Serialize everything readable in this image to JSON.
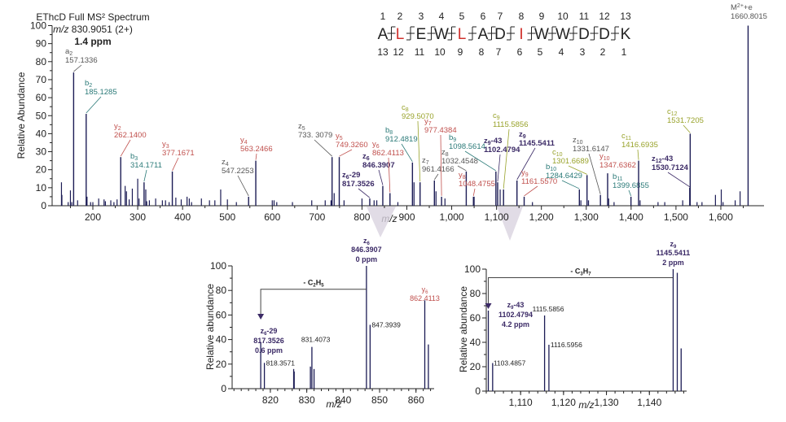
{
  "header": {
    "line1": "EThcD Full MS² Spectrum",
    "line2_italic": "m/z",
    "line2": " 830.9051 (2+)",
    "line3": "1.4 ppm"
  },
  "sequence": {
    "residues": [
      "A",
      "L",
      "E",
      "W",
      "L",
      "A",
      "D",
      "I",
      "W",
      "W",
      "D",
      "D",
      "K"
    ],
    "highlighted_indices": [
      1,
      4,
      7
    ],
    "highlight_color": "#d0312d",
    "top_numbers": [
      "1",
      "2",
      "3",
      "4",
      "5",
      "6",
      "7",
      "8",
      "9",
      "10",
      "11",
      "12",
      "13"
    ],
    "bottom_numbers": [
      "13",
      "12",
      "11",
      "10",
      "9",
      "8",
      "7",
      "6",
      "5",
      "4",
      "3",
      "2",
      "1"
    ]
  },
  "colors": {
    "peak": "#1c1c55",
    "gray": "#555555",
    "teal": "#2b7a78",
    "red": "#c0504d",
    "olive": "#98a22a",
    "purple": "#3b2a66"
  },
  "chart_data": [
    {
      "type": "bar",
      "title": "EThcD Full MS² Spectrum",
      "xlabel": "m/z",
      "ylabel": "Relative Abundance",
      "xlim": [
        110,
        1695
      ],
      "ylim": [
        0,
        100
      ],
      "yticks": [
        "0",
        "10",
        "20",
        "30",
        "40",
        "50",
        "60",
        "70",
        "80",
        "90",
        "100"
      ],
      "xticks": [
        "200",
        "300",
        "400",
        "500",
        "600",
        "700",
        "800",
        "900",
        "1,000",
        "1,100",
        "1,200",
        "1,300",
        "1,400",
        "1,500",
        "1,600"
      ],
      "labeled_peaks": [
        {
          "ion": "a",
          "sub": "2",
          "suffix": "",
          "mz": "157.1336",
          "y": 74,
          "color": "gray",
          "bold": false
        },
        {
          "ion": "b",
          "sub": "2",
          "suffix": "",
          "mz": "185.1285",
          "y": 51,
          "color": "teal",
          "bold": false
        },
        {
          "ion": "y",
          "sub": "2",
          "suffix": "",
          "mz": "262.1400",
          "y": 27,
          "color": "red",
          "bold": false
        },
        {
          "ion": "b",
          "sub": "3",
          "suffix": "",
          "mz": "314.1711",
          "y": 13,
          "color": "teal",
          "bold": false
        },
        {
          "ion": "y",
          "sub": "3",
          "suffix": "",
          "mz": "377.1671",
          "y": 19,
          "color": "red",
          "bold": false
        },
        {
          "ion": "z",
          "sub": "4",
          "suffix": "",
          "mz": "547.2253",
          "y": 5,
          "color": "gray",
          "bold": false
        },
        {
          "ion": "y",
          "sub": "4",
          "suffix": "",
          "mz": "563.2466",
          "y": 25,
          "color": "red",
          "bold": false
        },
        {
          "ion": "z",
          "sub": "5",
          "suffix": "",
          "mz": "733. 3079",
          "y": 27,
          "color": "gray",
          "bold": false
        },
        {
          "ion": "y",
          "sub": "5",
          "suffix": "",
          "mz": "749.3260",
          "y": 27,
          "color": "red",
          "bold": false
        },
        {
          "ion": "z",
          "sub": "6",
          "suffix": "-29",
          "mz": "817.3526",
          "y": 4,
          "color": "purple",
          "bold": true
        },
        {
          "ion": "z",
          "sub": "6",
          "suffix": "",
          "mz": "846.3907",
          "y": 11,
          "color": "purple",
          "bold": true
        },
        {
          "ion": "y",
          "sub": "6",
          "suffix": "",
          "mz": "862.4113",
          "y": 7,
          "color": "red",
          "bold": false
        },
        {
          "ion": "b",
          "sub": "8",
          "suffix": "",
          "mz": "912.4819",
          "y": 24,
          "color": "teal",
          "bold": false
        },
        {
          "ion": "c",
          "sub": "8",
          "suffix": "",
          "mz": "929.5070",
          "y": 13,
          "color": "olive",
          "bold": false
        },
        {
          "ion": "z",
          "sub": "7",
          "suffix": "",
          "mz": "961.4166",
          "y": 14,
          "color": "gray",
          "bold": false
        },
        {
          "ion": "y",
          "sub": "7",
          "suffix": "",
          "mz": "977.4384",
          "y": 5,
          "color": "red",
          "bold": false
        },
        {
          "ion": "z",
          "sub": "8",
          "suffix": "",
          "mz": "1032.4548",
          "y": 19,
          "color": "gray",
          "bold": false
        },
        {
          "ion": "y",
          "sub": "8",
          "suffix": "",
          "mz": "1048.4755",
          "y": 5,
          "color": "red",
          "bold": false
        },
        {
          "ion": "b",
          "sub": "9",
          "suffix": "",
          "mz": "1098.5614",
          "y": 19,
          "color": "teal",
          "bold": false
        },
        {
          "ion": "z",
          "sub": "9",
          "suffix": "-43",
          "mz": "1102.4794",
          "y": 13,
          "color": "purple",
          "bold": true
        },
        {
          "ion": "c",
          "sub": "9",
          "suffix": "",
          "mz": "1115.5856",
          "y": 9,
          "color": "olive",
          "bold": false
        },
        {
          "ion": "z",
          "sub": "9",
          "suffix": "",
          "mz": "1145.5411",
          "y": 14,
          "color": "purple",
          "bold": true
        },
        {
          "ion": "y",
          "sub": "9",
          "suffix": "",
          "mz": "1161.5570",
          "y": 5,
          "color": "red",
          "bold": false
        },
        {
          "ion": "b",
          "sub": "10",
          "suffix": "",
          "mz": "1284.6429",
          "y": 9,
          "color": "teal",
          "bold": false
        },
        {
          "ion": "c",
          "sub": "10",
          "suffix": "",
          "mz": "1301.6689",
          "y": 17,
          "color": "olive",
          "bold": false
        },
        {
          "ion": "z",
          "sub": "10",
          "suffix": "",
          "mz": "1331.6147",
          "y": 6,
          "color": "gray",
          "bold": false
        },
        {
          "ion": "y",
          "sub": "10",
          "suffix": "",
          "mz": "1347.6362",
          "y": 18,
          "color": "red",
          "bold": false
        },
        {
          "ion": "b",
          "sub": "11",
          "suffix": "",
          "mz": "1399.6855",
          "y": 5,
          "color": "teal",
          "bold": false
        },
        {
          "ion": "c",
          "sub": "11",
          "suffix": "",
          "mz": "1416.6935",
          "y": 25,
          "color": "olive",
          "bold": false
        },
        {
          "ion": "z",
          "sub": "12",
          "suffix": "-43",
          "mz": "1530.7124",
          "y": 10,
          "color": "purple",
          "bold": true
        },
        {
          "ion": "c",
          "sub": "12",
          "suffix": "",
          "mz": "1531.7205",
          "y": 40,
          "color": "olive",
          "bold": false
        },
        {
          "ion": "M",
          "sub": "2+",
          "suffix": "+e",
          "mz": "1660.8015",
          "y": 100,
          "color": "gray",
          "bold": false
        }
      ],
      "other_peaks": [
        [
          130,
          13
        ],
        [
          131,
          6
        ],
        [
          145,
          2
        ],
        [
          150,
          8.5
        ],
        [
          153,
          2
        ],
        [
          166,
          3
        ],
        [
          187,
          5
        ],
        [
          195,
          2
        ],
        [
          200,
          2
        ],
        [
          213,
          4
        ],
        [
          225,
          3.5
        ],
        [
          228,
          2.5
        ],
        [
          240,
          3
        ],
        [
          247,
          2
        ],
        [
          254,
          3.5
        ],
        [
          272,
          11
        ],
        [
          275,
          8
        ],
        [
          281,
          3.5
        ],
        [
          288,
          9.5
        ],
        [
          300,
          15
        ],
        [
          303,
          4
        ],
        [
          318,
          9
        ],
        [
          320,
          2.5
        ],
        [
          326,
          3
        ],
        [
          340,
          4
        ],
        [
          355,
          3
        ],
        [
          362,
          3
        ],
        [
          370,
          2
        ],
        [
          385,
          4.5
        ],
        [
          397,
          3.5
        ],
        [
          410,
          5
        ],
        [
          415,
          4
        ],
        [
          420,
          2
        ],
        [
          442,
          4
        ],
        [
          460,
          3
        ],
        [
          472,
          3
        ],
        [
          485,
          9
        ],
        [
          500,
          3.5
        ],
        [
          520,
          2
        ],
        [
          600,
          3
        ],
        [
          604,
          3
        ],
        [
          610,
          2
        ],
        [
          645,
          2
        ],
        [
          688,
          3
        ],
        [
          718,
          3
        ],
        [
          731,
          3
        ],
        [
          738,
          7
        ],
        [
          760,
          3
        ],
        [
          800,
          4
        ],
        [
          827,
          3
        ],
        [
          833,
          3
        ],
        [
          880,
          2
        ],
        [
          916,
          13
        ],
        [
          965,
          8
        ],
        [
          985,
          4
        ],
        [
          1050,
          5
        ],
        [
          1108,
          9
        ],
        [
          1180,
          2
        ],
        [
          1288,
          3
        ],
        [
          1305,
          3
        ],
        [
          1350,
          4
        ],
        [
          1362,
          2
        ],
        [
          1420,
          3
        ],
        [
          1460,
          2
        ],
        [
          1475,
          2
        ],
        [
          1515,
          3
        ],
        [
          1547,
          2
        ],
        [
          1558,
          2
        ],
        [
          1588,
          6
        ],
        [
          1601,
          9
        ],
        [
          1605,
          2
        ],
        [
          1632,
          3
        ],
        [
          1643,
          8
        ]
      ]
    },
    {
      "type": "bar",
      "xlabel": "m/z",
      "ylabel": "Relative abundance",
      "xlim": [
        809.5,
        865
      ],
      "ylim": [
        0,
        100
      ],
      "yticks": [
        "0",
        "20",
        "40",
        "60",
        "80",
        "100"
      ],
      "xticks": [
        "820",
        "830",
        "840",
        "850",
        "860"
      ],
      "peaks": [
        [
          817.3526,
          38
        ],
        [
          818.3571,
          21
        ],
        [
          826.4,
          16
        ],
        [
          826.55,
          14
        ],
        [
          831.0,
          18
        ],
        [
          831.4073,
          34
        ],
        [
          832.0,
          16
        ],
        [
          846.3907,
          100
        ],
        [
          847.3939,
          52
        ],
        [
          862.4113,
          72
        ],
        [
          863.4,
          36
        ]
      ],
      "peak_labels": [
        {
          "text": "818.3571",
          "mz": 818.3571
        },
        {
          "text": "831.4073",
          "mz": 831.4073
        },
        {
          "text": "847.3939",
          "mz": 847.3939
        }
      ],
      "annot_top": {
        "ion": "z",
        "sub": "6",
        "mz": "846.3907",
        "ppm": "0 ppm"
      },
      "annot_left": {
        "ion": "z",
        "sub": "6",
        "suffix": "-29",
        "mz": "817.3526",
        "ppm": "0.6 ppm"
      },
      "annot_y": {
        "ion": "y",
        "sub": "6",
        "mz": "862.4113"
      },
      "loss": {
        "label": "- C",
        "s1": "2",
        "mid": "H",
        "s2": "5",
        "level": 81
      }
    },
    {
      "type": "bar",
      "xlabel": "m/z",
      "ylabel": "Relative abundance",
      "xlim": [
        1102,
        1148.7
      ],
      "ylim": [
        0,
        100
      ],
      "yticks": [
        "0",
        "20",
        "40",
        "60",
        "80",
        "100"
      ],
      "xticks": [
        "1,110",
        "1,120",
        "1,130",
        "1,140"
      ],
      "peaks": [
        [
          1102.4794,
          66
        ],
        [
          1103.4857,
          23
        ],
        [
          1115.5856,
          62
        ],
        [
          1116.5956,
          38
        ],
        [
          1145.5411,
          100
        ],
        [
          1146.5,
          97
        ],
        [
          1147.4,
          35
        ]
      ],
      "peak_labels": [
        {
          "text": "1103.4857",
          "mz": 1103.4857
        },
        {
          "text": "1115.5856",
          "mz": 1115.5856
        },
        {
          "text": "1116.5956",
          "mz": 1116.5956
        }
      ],
      "annot_top": {
        "ion": "z",
        "sub": "9",
        "mz": "1145.5411",
        "ppm": "2 ppm"
      },
      "annot_left": {
        "ion": "z",
        "sub": "9",
        "suffix": "-43",
        "mz": "1102.4794",
        "ppm": "4.2 ppm"
      },
      "loss": {
        "label": "- C",
        "s1": "3",
        "mid": "H",
        "s2": "7",
        "level": 93
      }
    }
  ]
}
